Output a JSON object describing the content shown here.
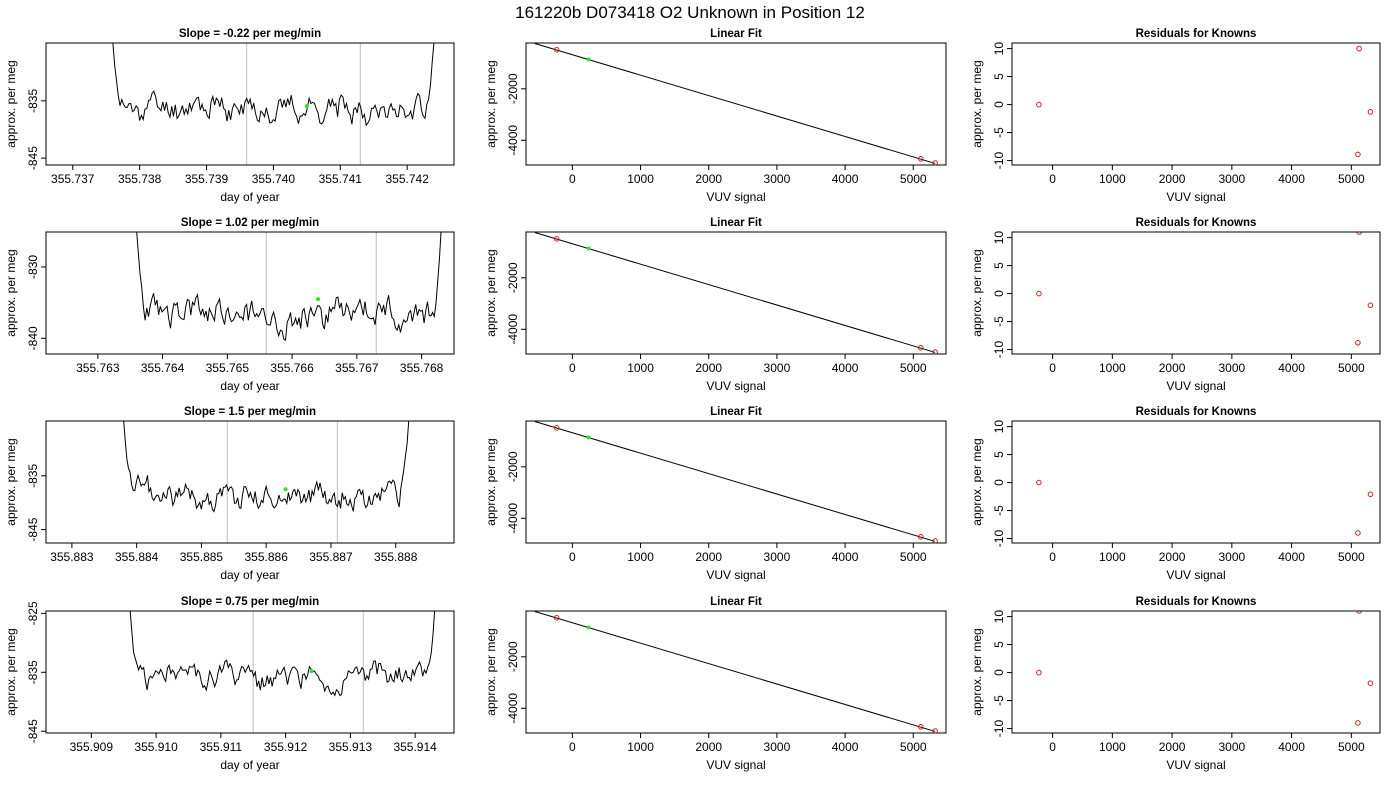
{
  "figure_title": "161220b      D073418   O2 Unknown in Position  12",
  "chart_data": [
    {
      "type": "line",
      "title": "Slope =  -0.22  per meg/min",
      "xlabel": "day of year",
      "ylabel": "approx. per meg",
      "xlim": [
        355.7366,
        355.7427
      ],
      "ylim": [
        -846.2,
        -824.9
      ],
      "x_ticks": [
        "355.737",
        "355.738",
        "355.739",
        "355.740",
        "355.741",
        "355.742"
      ],
      "y_ticks": [
        "-845",
        "-835"
      ],
      "vlines": [
        355.7396,
        355.7413
      ],
      "highlight_point": {
        "x": 355.7405,
        "y": -835.9
      },
      "series": [
        {
          "values": {
            "x_start": 355.7376,
            "x_end": 355.7424,
            "seed": 11,
            "baseline": -836.3,
            "slope_per_day": 0,
            "noise": 1.7,
            "y_left_start": -824.9,
            "y_right_end": -824.9
          }
        }
      ]
    },
    {
      "type": "scatter",
      "title": "Linear Fit",
      "xlabel": "VUV signal",
      "ylabel": "approx. per meg",
      "xlim": [
        -680,
        5480
      ],
      "ylim": [
        -4960,
        -220
      ],
      "x_ticks": [
        "0",
        "1000",
        "2000",
        "3000",
        "4000",
        "5000"
      ],
      "y_ticks": [
        "-4000",
        "-2000"
      ],
      "fit_line": {
        "x": [
          -550,
          5320
        ],
        "y": [
          -240,
          -4900
        ]
      },
      "known_points": [
        {
          "x": -230,
          "y": -485
        },
        {
          "x": 5110,
          "y": -4720
        },
        {
          "x": 5320,
          "y": -4885
        }
      ],
      "unknown_point": {
        "x": 240,
        "y": -860
      }
    },
    {
      "type": "scatter",
      "title": "Residuals for Knowns",
      "xlabel": "VUV signal",
      "ylabel": "approx. per meg",
      "xlim": [
        -680,
        5480
      ],
      "ylim": [
        -10.8,
        11
      ],
      "x_ticks": [
        "0",
        "1000",
        "2000",
        "3000",
        "4000",
        "5000"
      ],
      "y_ticks": [
        "-10",
        "-5",
        "0",
        "5",
        "10"
      ],
      "points": [
        {
          "x": -230,
          "y": 0
        },
        {
          "x": 5130,
          "y": 10
        },
        {
          "x": 5320,
          "y": -1.3
        },
        {
          "x": 5110,
          "y": -8.9
        }
      ]
    },
    {
      "type": "line",
      "title": "Slope =  1.02  per meg/min",
      "xlabel": "day of year",
      "ylabel": "approx. per meg",
      "xlim": [
        355.7622,
        355.7685
      ],
      "ylim": [
        -842.2,
        -825.1
      ],
      "x_ticks": [
        "355.763",
        "355.764",
        "355.765",
        "355.766",
        "355.767",
        "355.768"
      ],
      "y_ticks": [
        "-840",
        "-830"
      ],
      "vlines": [
        355.7656,
        355.7673
      ],
      "highlight_point": {
        "x": 355.7664,
        "y": -834.5
      },
      "series": [
        {
          "values": {
            "x_start": 355.7636,
            "x_end": 355.7683,
            "seed": 23,
            "baseline": -836.5,
            "slope_per_day": 300,
            "noise": 1.5,
            "y_left_start": -825.1,
            "y_right_end": -825.1
          }
        }
      ]
    },
    {
      "type": "scatter",
      "title": "Linear Fit",
      "xlabel": "VUV signal",
      "ylabel": "approx. per meg",
      "xlim": [
        -680,
        5480
      ],
      "ylim": [
        -4960,
        -220
      ],
      "x_ticks": [
        "0",
        "1000",
        "2000",
        "3000",
        "4000",
        "5000"
      ],
      "y_ticks": [
        "-4000",
        "-2000"
      ],
      "fit_line": {
        "x": [
          -550,
          5320
        ],
        "y": [
          -240,
          -4900
        ]
      },
      "known_points": [
        {
          "x": -230,
          "y": -485
        },
        {
          "x": 5110,
          "y": -4720
        },
        {
          "x": 5320,
          "y": -4885
        }
      ],
      "unknown_point": {
        "x": 240,
        "y": -860
      }
    },
    {
      "type": "scatter",
      "title": "Residuals for Knowns",
      "xlabel": "VUV signal",
      "ylabel": "approx. per meg",
      "xlim": [
        -680,
        5480
      ],
      "ylim": [
        -10.8,
        11
      ],
      "x_ticks": [
        "0",
        "1000",
        "2000",
        "3000",
        "4000",
        "5000"
      ],
      "y_ticks": [
        "-10",
        "-5",
        "0",
        "5",
        "10"
      ],
      "points": [
        {
          "x": -230,
          "y": 0
        },
        {
          "x": 5130,
          "y": 11
        },
        {
          "x": 5320,
          "y": -2.1
        },
        {
          "x": 5110,
          "y": -8.8
        }
      ]
    },
    {
      "type": "line",
      "title": "Slope =  1.5  per meg/min",
      "xlabel": "day of year",
      "ylabel": "approx. per meg",
      "xlim": [
        355.8826,
        355.8889
      ],
      "ylim": [
        -847.5,
        -824.8
      ],
      "x_ticks": [
        "355.883",
        "355.884",
        "355.885",
        "355.886",
        "355.887",
        "355.888"
      ],
      "y_ticks": [
        "-845",
        "-835"
      ],
      "vlines": [
        355.8854,
        355.8871
      ],
      "highlight_point": {
        "x": 355.8863,
        "y": -837.5
      },
      "series": [
        {
          "values": {
            "x_start": 355.8838,
            "x_end": 355.8882,
            "seed": 37,
            "baseline": -838.6,
            "slope_per_day": 1200,
            "noise": 1.7,
            "y_left_start": -824.8,
            "y_right_end": -824.8
          }
        }
      ]
    },
    {
      "type": "scatter",
      "title": "Linear Fit",
      "xlabel": "VUV signal",
      "ylabel": "approx. per meg",
      "xlim": [
        -680,
        5480
      ],
      "ylim": [
        -4960,
        -220
      ],
      "x_ticks": [
        "0",
        "1000",
        "2000",
        "3000",
        "4000",
        "5000"
      ],
      "y_ticks": [
        "-4000",
        "-2000"
      ],
      "fit_line": {
        "x": [
          -550,
          5320
        ],
        "y": [
          -240,
          -4900
        ]
      },
      "known_points": [
        {
          "x": -230,
          "y": -485
        },
        {
          "x": 5110,
          "y": -4720
        },
        {
          "x": 5320,
          "y": -4885
        }
      ],
      "unknown_point": {
        "x": 240,
        "y": -860
      }
    },
    {
      "type": "scatter",
      "title": "Residuals for Knowns",
      "xlabel": "VUV signal",
      "ylabel": "approx. per meg",
      "xlim": [
        -680,
        5480
      ],
      "ylim": [
        -10.8,
        11
      ],
      "x_ticks": [
        "0",
        "1000",
        "2000",
        "3000",
        "4000",
        "5000"
      ],
      "y_ticks": [
        "-10",
        "-5",
        "0",
        "5",
        "10"
      ],
      "points": [
        {
          "x": -230,
          "y": 0
        },
        {
          "x": 5320,
          "y": -2.1
        },
        {
          "x": 5110,
          "y": -9
        }
      ]
    },
    {
      "type": "line",
      "title": "Slope =  0.75  per meg/min",
      "xlabel": "day of year",
      "ylabel": "approx. per meg",
      "xlim": [
        355.9083,
        355.9146
      ],
      "ylim": [
        -845.3,
        -824.6
      ],
      "x_ticks": [
        "355.909",
        "355.910",
        "355.911",
        "355.912",
        "355.913",
        "355.914"
      ],
      "y_ticks": [
        "-845",
        "-835",
        "-825"
      ],
      "vlines": [
        355.9115,
        355.9132
      ],
      "highlight_point": {
        "x": 355.9124,
        "y": -834.8
      },
      "series": [
        {
          "values": {
            "x_start": 355.9096,
            "x_end": 355.9143,
            "seed": 51,
            "baseline": -835.8,
            "slope_per_day": 200,
            "noise": 1.5,
            "y_left_start": -824.6,
            "y_right_end": -824.6
          }
        }
      ]
    },
    {
      "type": "scatter",
      "title": "Linear Fit",
      "xlabel": "VUV signal",
      "ylabel": "approx. per meg",
      "xlim": [
        -680,
        5480
      ],
      "ylim": [
        -4960,
        -220
      ],
      "x_ticks": [
        "0",
        "1000",
        "2000",
        "3000",
        "4000",
        "5000"
      ],
      "y_ticks": [
        "-4000",
        "-2000"
      ],
      "fit_line": {
        "x": [
          -550,
          5320
        ],
        "y": [
          -240,
          -4900
        ]
      },
      "known_points": [
        {
          "x": -230,
          "y": -485
        },
        {
          "x": 5110,
          "y": -4720
        },
        {
          "x": 5320,
          "y": -4885
        }
      ],
      "unknown_point": {
        "x": 240,
        "y": -860
      }
    },
    {
      "type": "scatter",
      "title": "Residuals for Knowns",
      "xlabel": "VUV signal",
      "ylabel": "approx. per meg",
      "xlim": [
        -680,
        5480
      ],
      "ylim": [
        -10.8,
        11
      ],
      "x_ticks": [
        "0",
        "1000",
        "2000",
        "3000",
        "4000",
        "5000"
      ],
      "y_ticks": [
        "-10",
        "-5",
        "0",
        "5",
        "10"
      ],
      "points": [
        {
          "x": -230,
          "y": 0
        },
        {
          "x": 5130,
          "y": 11
        },
        {
          "x": 5320,
          "y": -1.9
        },
        {
          "x": 5110,
          "y": -9
        }
      ]
    }
  ],
  "colors": {
    "line": "#000000",
    "known_point": "#cc2222",
    "unknown_point": "#33dd33",
    "vline": "#c8c8c8",
    "axis": "#000000"
  }
}
